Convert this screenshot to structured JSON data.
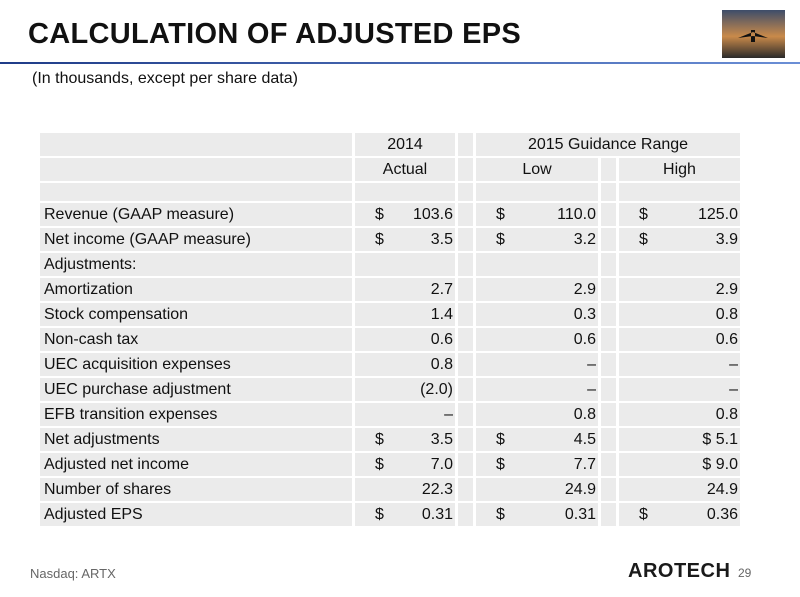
{
  "header": {
    "title": "CALCULATION OF ADJUSTED EPS",
    "subtitle": "(In thousands, except per share data)"
  },
  "table": {
    "group_headers": [
      "2014",
      "2015 Guidance Range"
    ],
    "column_headers": [
      "Actual",
      "Low",
      "High"
    ],
    "rows": [
      {
        "label": "Revenue (GAAP measure)",
        "cells": [
          [
            "$",
            "103.6"
          ],
          [
            "$",
            "110.0"
          ],
          [
            "$",
            "125.0"
          ]
        ]
      },
      {
        "label": "Net income (GAAP measure)",
        "cells": [
          [
            "$",
            "3.5"
          ],
          [
            "$",
            "3.2"
          ],
          [
            "$",
            "3.9"
          ]
        ]
      },
      {
        "label": "Adjustments:",
        "cells": [
          [],
          [],
          []
        ]
      },
      {
        "label": "Amortization",
        "cells": [
          [
            "2.7"
          ],
          [
            "2.9"
          ],
          [
            "2.9"
          ]
        ]
      },
      {
        "label": "Stock compensation",
        "cells": [
          [
            "1.4"
          ],
          [
            "0.3"
          ],
          [
            "0.8"
          ]
        ]
      },
      {
        "label": "Non-cash tax",
        "cells": [
          [
            "0.6"
          ],
          [
            "0.6"
          ],
          [
            "0.6"
          ]
        ]
      },
      {
        "label": "UEC acquisition expenses",
        "cells": [
          [
            "0.8"
          ],
          [
            "–"
          ],
          [
            "–"
          ]
        ]
      },
      {
        "label": "UEC purchase adjustment",
        "cells": [
          [
            "(2.0)"
          ],
          [
            "–"
          ],
          [
            "–"
          ]
        ]
      },
      {
        "label": "EFB transition expenses",
        "cells": [
          [
            "–"
          ],
          [
            "0.8"
          ],
          [
            "0.8"
          ]
        ]
      },
      {
        "label": "Net adjustments",
        "cells": [
          [
            "$",
            "3.5"
          ],
          [
            "$",
            "4.5"
          ],
          [
            "$ 5.1"
          ]
        ]
      },
      {
        "label": "Adjusted net income",
        "cells": [
          [
            "$",
            "7.0"
          ],
          [
            "$",
            "7.7"
          ],
          [
            "$ 9.0"
          ]
        ]
      },
      {
        "label": "Number of shares",
        "cells": [
          [
            "22.3"
          ],
          [
            "24.9"
          ],
          [
            "24.9"
          ]
        ]
      },
      {
        "label": "Adjusted EPS",
        "cells": [
          [
            "$",
            "0.31"
          ],
          [
            "$",
            "0.31"
          ],
          [
            "$",
            "0.36"
          ]
        ]
      }
    ]
  },
  "footer": {
    "exchange": "Nasdaq: ARTX",
    "logo": "AROTECH",
    "page": "29"
  }
}
